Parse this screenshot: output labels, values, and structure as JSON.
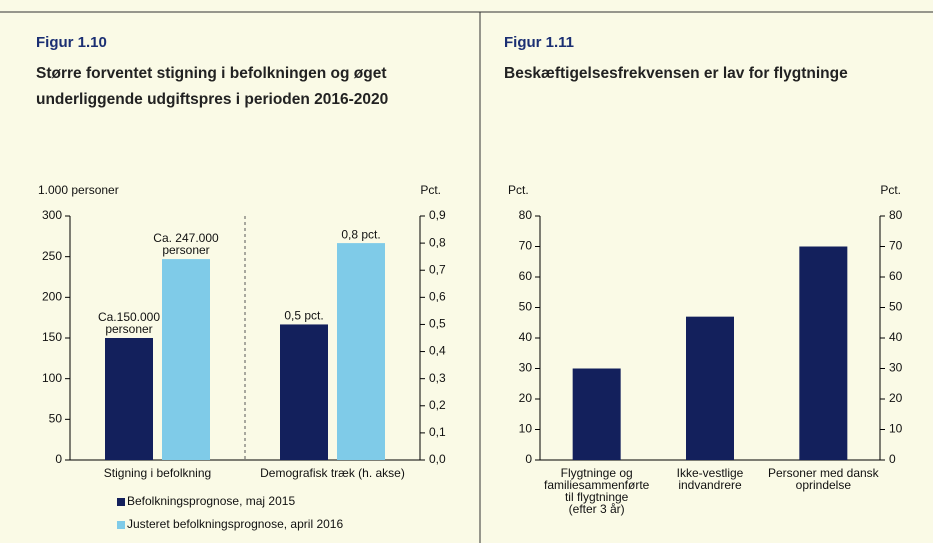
{
  "chart_data": [
    {
      "type": "bar",
      "figure_label": "Figur 1.10",
      "title": "Større forventet stigning i befolkningen og øget underliggende udgiftspres i perioden 2016-2020",
      "ylabel": "1.000 personer",
      "y2label": "Pct.",
      "categories": [
        "Stigning i befolkning",
        "Demografisk træk (h. akse)"
      ],
      "category_axes": [
        "y",
        "y2"
      ],
      "series": [
        {
          "name": "Befolkningsprognose, maj 2015",
          "color": "#13205c",
          "values": [
            150,
            0.5
          ],
          "value_labels": [
            "Ca.150.000\npersoner",
            "0,5 pct."
          ]
        },
        {
          "name": "Justeret befolkningsprognose, april 2016",
          "color": "#7fcbe8",
          "values": [
            247,
            0.8
          ],
          "value_labels": [
            "Ca. 247.000\npersoner",
            "0,8 pct."
          ]
        }
      ],
      "ylim": [
        0,
        300
      ],
      "yticks": [
        0,
        50,
        100,
        150,
        200,
        250,
        300
      ],
      "y2lim": [
        0,
        0.9
      ],
      "y2ticks": [
        {
          "value": 0,
          "label": "0,0"
        },
        {
          "value": 0.1,
          "label": "0,1"
        },
        {
          "value": 0.2,
          "label": "0,2"
        },
        {
          "value": 0.3,
          "label": "0,3"
        },
        {
          "value": 0.4,
          "label": "0,4"
        },
        {
          "value": 0.5,
          "label": "0,5"
        },
        {
          "value": 0.6,
          "label": "0,6"
        },
        {
          "value": 0.7,
          "label": "0,7"
        },
        {
          "value": 0.8,
          "label": "0,8"
        },
        {
          "value": 0.9,
          "label": "0,9"
        }
      ],
      "legend": "bottom"
    },
    {
      "type": "bar",
      "figure_label": "Figur 1.11",
      "title": "Beskæftigelsesfrekvensen er lav for flygtninge",
      "ylabel": "Pct.",
      "y2label": "Pct.",
      "categories": [
        "Flygtninge og\nfamiliesammenførte\ntil flygtninge\n(efter 3 år)",
        "Ikke-vestlige\nindvandrere",
        "Personer med dansk\noprindelse"
      ],
      "values": [
        30,
        47,
        70
      ],
      "color": "#13205c",
      "ylim": [
        0,
        80
      ],
      "yticks": [
        0,
        10,
        20,
        30,
        40,
        50,
        60,
        70,
        80
      ],
      "y2lim": [
        0,
        80
      ],
      "y2ticks": [
        0,
        10,
        20,
        30,
        40,
        50,
        60,
        70,
        80
      ]
    }
  ]
}
